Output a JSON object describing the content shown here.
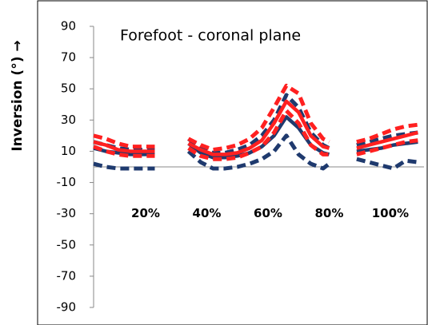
{
  "chart_data": {
    "type": "line",
    "title": "Forefoot - coronal plane",
    "y_label": "Inversion (°) →",
    "x": [
      3,
      7,
      11,
      15,
      19,
      23,
      28,
      34,
      38,
      42,
      46,
      50,
      54,
      58,
      62,
      66,
      70,
      74,
      78,
      80,
      85,
      89,
      93,
      97,
      101,
      105,
      109
    ],
    "xlim": [
      3,
      111
    ],
    "xticks": [
      {
        "value": 20,
        "label": "20%"
      },
      {
        "value": 40,
        "label": "40%"
      },
      {
        "value": 60,
        "label": "60%"
      },
      {
        "value": 80,
        "label": "80%"
      },
      {
        "value": 100,
        "label": "100%"
      }
    ],
    "ylim": [
      -90,
      90
    ],
    "yticks": [
      -90,
      -70,
      -50,
      -30,
      -10,
      10,
      30,
      50,
      70,
      90
    ],
    "series": [
      {
        "color": "#1f3a6e",
        "dash": true,
        "values": [
          16,
          14,
          12,
          11,
          11,
          11,
          null,
          18,
          12,
          9,
          9,
          11,
          14,
          20,
          30,
          46,
          38,
          22,
          14,
          12,
          null,
          14,
          16,
          18,
          20,
          21,
          22
        ]
      },
      {
        "color": "#1f3a6e",
        "dash": true,
        "values": [
          2,
          0,
          -1,
          -1,
          -1,
          -1,
          null,
          10,
          3,
          -1,
          -1,
          0,
          2,
          5,
          10,
          20,
          8,
          2,
          -1,
          2,
          null,
          5,
          3,
          1,
          -1,
          4,
          3
        ]
      },
      {
        "color": "#1f3a6e",
        "dash": false,
        "values": [
          12,
          10,
          9,
          8,
          8,
          8,
          null,
          15,
          9,
          6,
          6,
          7,
          9,
          13,
          20,
          32,
          25,
          14,
          9,
          8,
          null,
          10,
          11,
          12,
          14,
          15,
          16
        ]
      },
      {
        "color": "#ff2020",
        "dash": true,
        "values": [
          20,
          18,
          15,
          13,
          13,
          13,
          null,
          18,
          14,
          11,
          12,
          14,
          18,
          25,
          38,
          52,
          47,
          28,
          18,
          16,
          null,
          16,
          18,
          21,
          24,
          26,
          27
        ]
      },
      {
        "color": "#ff2020",
        "dash": true,
        "values": [
          13,
          10,
          8,
          7,
          7,
          7,
          null,
          12,
          7,
          5,
          5,
          6,
          9,
          13,
          22,
          36,
          28,
          14,
          8,
          8,
          null,
          8,
          10,
          12,
          14,
          16,
          17
        ]
      },
      {
        "color": "#ff2020",
        "dash": false,
        "values": [
          16,
          14,
          11,
          10,
          10,
          10,
          null,
          15,
          11,
          8,
          8,
          9,
          12,
          17,
          28,
          42,
          35,
          20,
          13,
          12,
          null,
          12,
          14,
          16,
          18,
          20,
          22
        ]
      }
    ]
  }
}
